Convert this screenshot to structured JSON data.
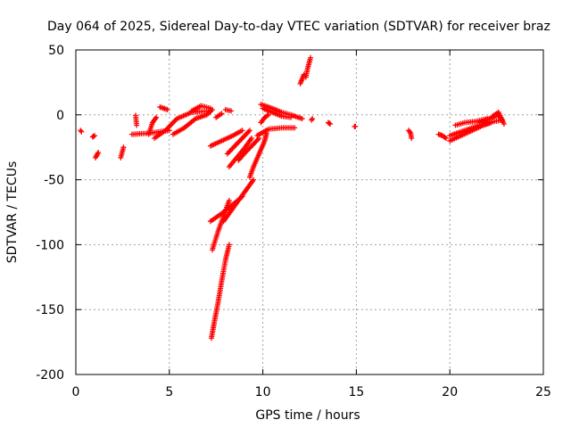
{
  "chart_data": {
    "type": "scatter",
    "title": "Day 064 of 2025, Sidereal Day-to-day VTEC variation (SDTVAR) for receiver braz",
    "xlabel": "GPS time / hours",
    "ylabel": "SDTVAR / TECUs",
    "xlim": [
      0,
      25
    ],
    "ylim": [
      -200,
      50
    ],
    "xticks": [
      0,
      5,
      10,
      15,
      20,
      25
    ],
    "yticks": [
      50,
      0,
      -50,
      -100,
      -150,
      -200
    ],
    "xtick_labels": [
      "0",
      "5",
      "10",
      "15",
      "20",
      "25"
    ],
    "ytick_labels": [
      "50",
      "0",
      "-50",
      "-100",
      "-150",
      "-200"
    ],
    "grid": true,
    "marker": "+",
    "series": [
      {
        "name": "SDTVAR",
        "color": "#ff0000",
        "segments": [
          [
            [
              0.25,
              -12
            ],
            [
              0.3,
              -13
            ]
          ],
          [
            [
              0.9,
              -17
            ],
            [
              1.0,
              -16
            ]
          ],
          [
            [
              1.05,
              -33
            ],
            [
              1.2,
              -29
            ]
          ],
          [
            [
              2.4,
              -33
            ],
            [
              2.55,
              -25
            ]
          ],
          [
            [
              3.2,
              -0.5
            ],
            [
              3.25,
              -8
            ]
          ],
          [
            [
              3.0,
              -15
            ],
            [
              4.0,
              -14
            ],
            [
              5.0,
              -12
            ]
          ],
          [
            [
              3.9,
              -15
            ],
            [
              4.1,
              -6
            ],
            [
              4.3,
              -2
            ]
          ],
          [
            [
              4.2,
              -18
            ],
            [
              4.8,
              -12
            ],
            [
              5.4,
              -3
            ],
            [
              6.2,
              2
            ],
            [
              7.2,
              3
            ]
          ],
          [
            [
              4.5,
              6
            ],
            [
              4.9,
              4
            ]
          ],
          [
            [
              5.2,
              -15
            ],
            [
              5.8,
              -10
            ],
            [
              6.4,
              -3
            ],
            [
              7.0,
              0
            ],
            [
              7.3,
              4
            ]
          ],
          [
            [
              6.2,
              3
            ],
            [
              6.7,
              7
            ],
            [
              7.2,
              5
            ]
          ],
          [
            [
              7.2,
              -24
            ],
            [
              7.8,
              -20
            ],
            [
              8.4,
              -16
            ],
            [
              8.9,
              -12
            ]
          ],
          [
            [
              7.5,
              -2
            ],
            [
              7.8,
              1
            ]
          ],
          [
            [
              8.0,
              4
            ],
            [
              8.3,
              3
            ]
          ],
          [
            [
              7.2,
              -82
            ],
            [
              7.8,
              -76
            ],
            [
              8.4,
              -69
            ],
            [
              8.9,
              -63
            ]
          ],
          [
            [
              7.3,
              -104
            ],
            [
              7.6,
              -90
            ],
            [
              7.9,
              -78
            ],
            [
              8.2,
              -66
            ]
          ],
          [
            [
              7.25,
              -172
            ],
            [
              7.4,
              -160
            ],
            [
              7.6,
              -145
            ],
            [
              7.8,
              -128
            ],
            [
              8.0,
              -112
            ],
            [
              8.2,
              -100
            ]
          ],
          [
            [
              7.9,
              -82
            ],
            [
              8.4,
              -72
            ],
            [
              9.0,
              -60
            ],
            [
              9.5,
              -50
            ]
          ],
          [
            [
              8.2,
              -40
            ],
            [
              8.6,
              -33
            ],
            [
              9.0,
              -26
            ],
            [
              9.4,
              -18
            ]
          ],
          [
            [
              8.1,
              -30
            ],
            [
              8.5,
              -24
            ],
            [
              8.9,
              -18
            ],
            [
              9.3,
              -12
            ]
          ],
          [
            [
              8.7,
              -35
            ],
            [
              9.0,
              -30
            ],
            [
              9.4,
              -24
            ],
            [
              9.8,
              -18
            ]
          ],
          [
            [
              9.3,
              -48
            ],
            [
              9.5,
              -40
            ],
            [
              9.8,
              -30
            ],
            [
              10.1,
              -20
            ],
            [
              10.2,
              -14
            ]
          ],
          [
            [
              9.7,
              -16
            ],
            [
              10.3,
              -11
            ],
            [
              11.0,
              -10
            ],
            [
              11.7,
              -10
            ]
          ],
          [
            [
              9.9,
              -6
            ],
            [
              10.1,
              -2
            ],
            [
              10.3,
              0
            ]
          ],
          [
            [
              9.9,
              8
            ],
            [
              10.5,
              5
            ],
            [
              11.0,
              2
            ],
            [
              11.5,
              0
            ],
            [
              12.1,
              -3
            ]
          ],
          [
            [
              10.0,
              5
            ],
            [
              10.5,
              2
            ],
            [
              11.0,
              -1
            ],
            [
              11.5,
              -2
            ]
          ],
          [
            [
              12.0,
              24
            ],
            [
              12.2,
              31
            ]
          ],
          [
            [
              12.3,
              29
            ],
            [
              12.4,
              36
            ],
            [
              12.55,
              44
            ]
          ],
          [
            [
              12.6,
              -4
            ],
            [
              12.65,
              -3
            ]
          ],
          [
            [
              13.5,
              -6
            ],
            [
              13.6,
              -7
            ]
          ],
          [
            [
              14.9,
              -9
            ],
            [
              14.95,
              -9
            ]
          ],
          [
            [
              17.8,
              -12
            ],
            [
              17.9,
              -14
            ],
            [
              17.95,
              -18
            ]
          ],
          [
            [
              19.4,
              -15
            ],
            [
              19.6,
              -16
            ],
            [
              19.8,
              -18
            ]
          ],
          [
            [
              20.0,
              -20
            ],
            [
              20.6,
              -16
            ],
            [
              21.2,
              -12
            ],
            [
              21.8,
              -8
            ],
            [
              22.2,
              -6
            ]
          ],
          [
            [
              20.0,
              -16
            ],
            [
              20.8,
              -12
            ],
            [
              21.6,
              -8
            ],
            [
              22.4,
              -5
            ],
            [
              22.8,
              -4
            ]
          ],
          [
            [
              20.3,
              -8
            ],
            [
              20.8,
              -6
            ],
            [
              21.4,
              -5
            ],
            [
              22.0,
              -3
            ]
          ],
          [
            [
              21.6,
              -6
            ],
            [
              22.1,
              -3
            ],
            [
              22.6,
              0
            ],
            [
              22.8,
              -4
            ]
          ],
          [
            [
              22.3,
              -1
            ],
            [
              22.6,
              2
            ],
            [
              22.9,
              -7
            ]
          ]
        ]
      }
    ]
  }
}
